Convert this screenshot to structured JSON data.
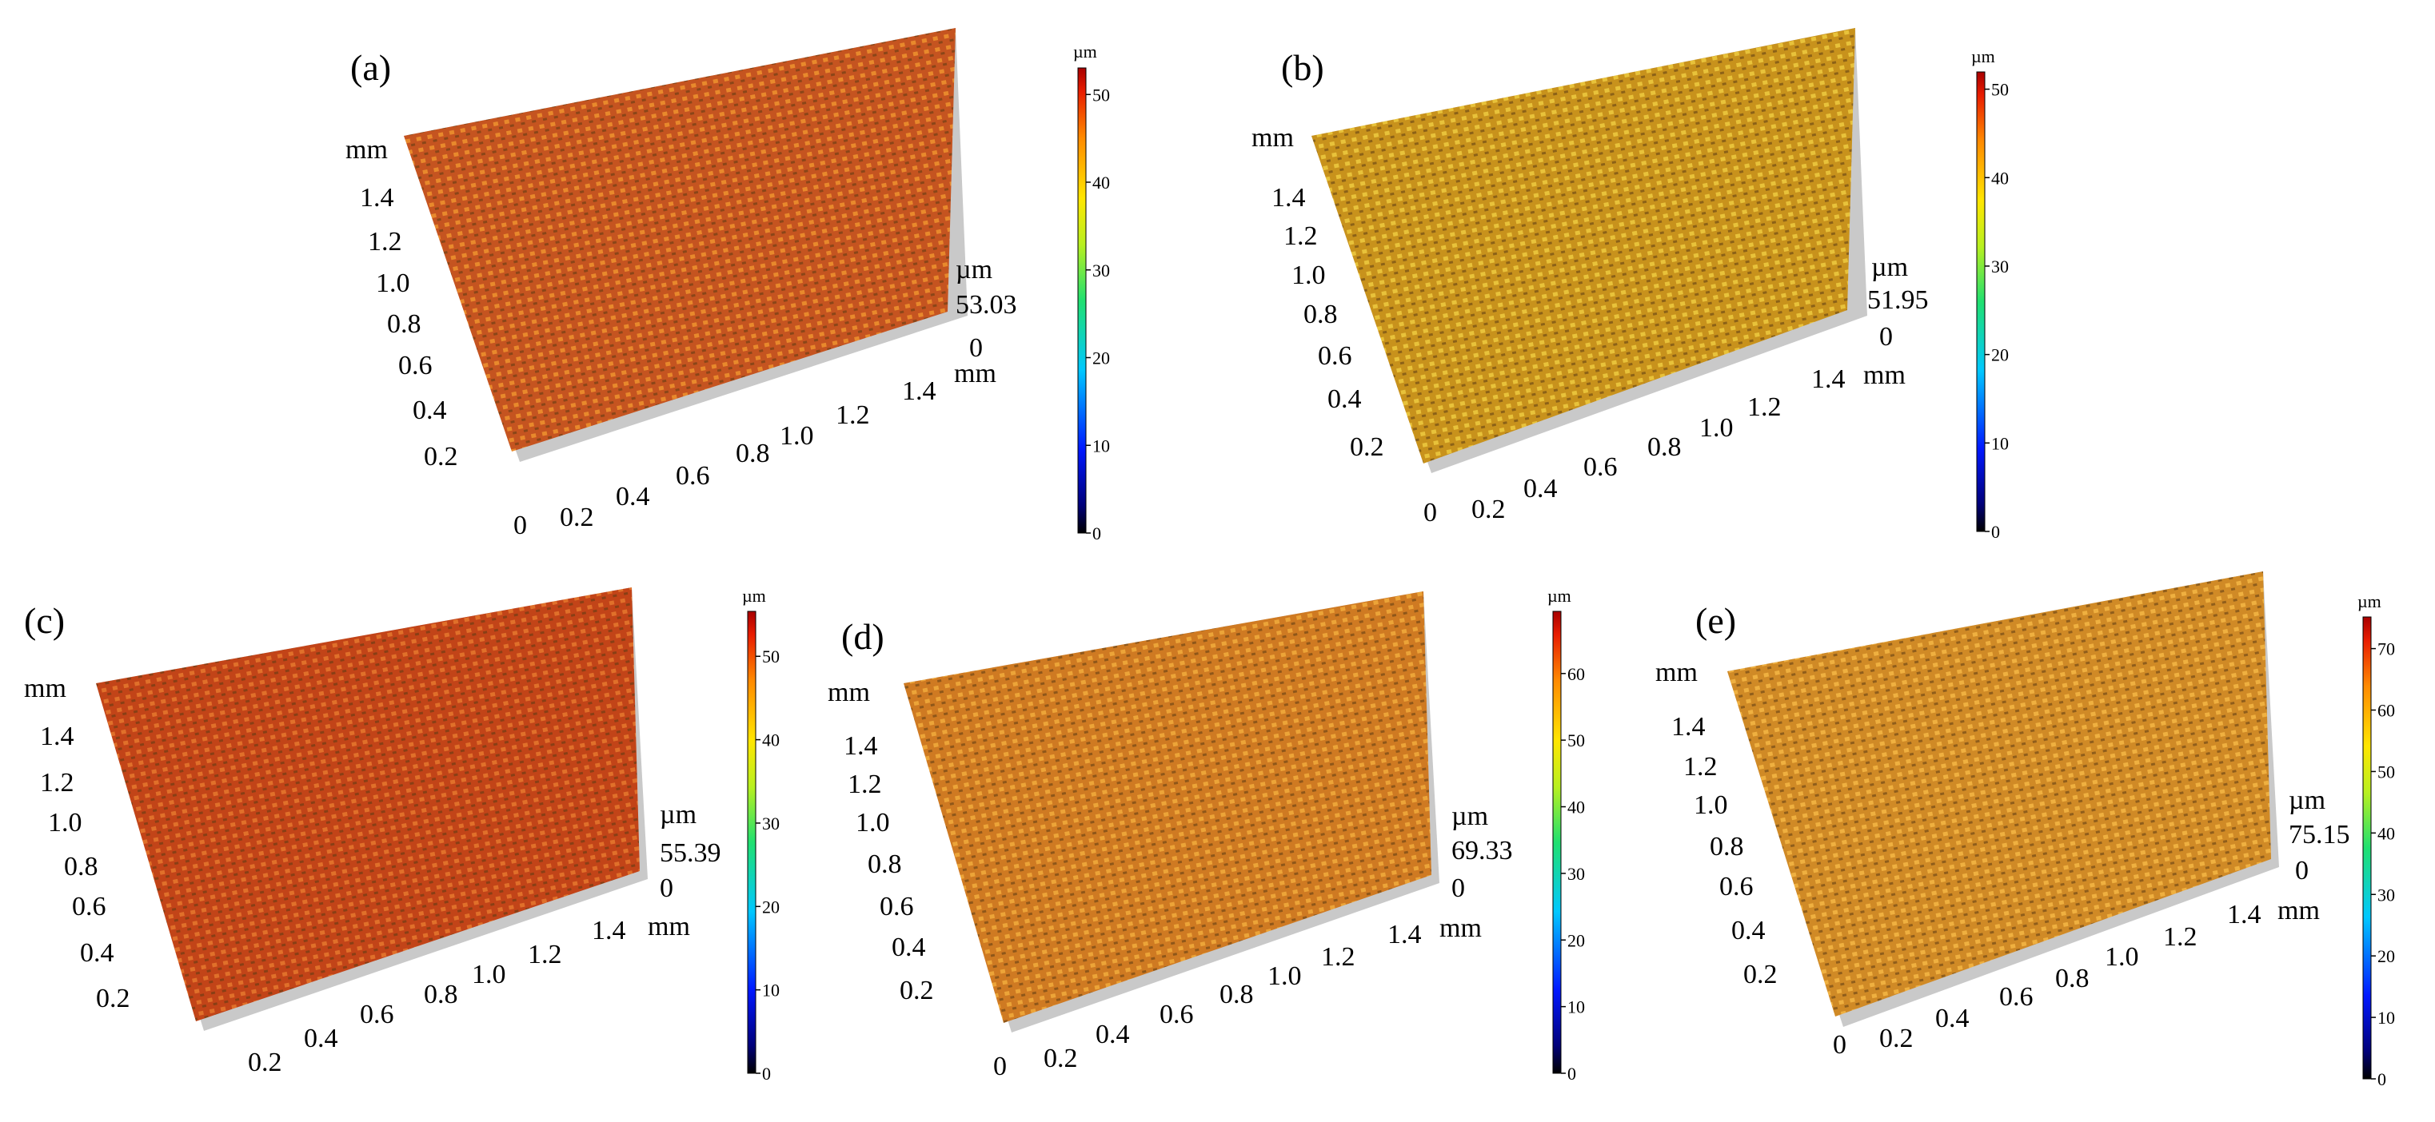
{
  "panels": [
    {
      "label": "(a)",
      "z_unit": "µm",
      "z_max": "53.03",
      "z_zero": "0",
      "surface_color": "#c55420",
      "highlight_color": "#e8892c",
      "y_axis": {
        "unit": "mm",
        "ticks": [
          "1.4",
          "1.2",
          "1.0",
          "0.8",
          "0.6",
          "0.4",
          "0.2"
        ]
      },
      "x_axis": {
        "unit": "mm",
        "ticks": [
          "0",
          "0.2",
          "0.4",
          "0.6",
          "0.8",
          "1.0",
          "1.2",
          "1.4"
        ]
      },
      "colorbar": {
        "unit": "µm",
        "ticks": [
          "50",
          "40",
          "30",
          "20",
          "10",
          "0"
        ]
      }
    },
    {
      "label": "(b)",
      "z_unit": "µm",
      "z_max": "51.95",
      "z_zero": "0",
      "surface_color": "#c8921c",
      "highlight_color": "#e8c23a",
      "y_axis": {
        "unit": "mm",
        "ticks": [
          "1.4",
          "1.2",
          "1.0",
          "0.8",
          "0.6",
          "0.4",
          "0.2"
        ]
      },
      "x_axis": {
        "unit": "mm",
        "ticks": [
          "0",
          "0.2",
          "0.4",
          "0.6",
          "0.8",
          "1.0",
          "1.2",
          "1.4"
        ]
      },
      "colorbar": {
        "unit": "µm",
        "ticks": [
          "50",
          "40",
          "30",
          "20",
          "10",
          "0"
        ]
      }
    },
    {
      "label": "(c)",
      "z_unit": "µm",
      "z_max": "55.39",
      "z_zero": "0",
      "surface_color": "#c24418",
      "highlight_color": "#e0702a",
      "y_axis": {
        "unit": "mm",
        "ticks": [
          "1.4",
          "1.2",
          "1.0",
          "0.8",
          "0.6",
          "0.4",
          "0.2"
        ]
      },
      "x_axis": {
        "unit": "mm",
        "ticks": [
          "0.2",
          "0.4",
          "0.6",
          "0.8",
          "1.0",
          "1.2",
          "1.4"
        ]
      },
      "colorbar": {
        "unit": "µm",
        "ticks": [
          "50",
          "40",
          "30",
          "20",
          "10",
          "0"
        ]
      }
    },
    {
      "label": "(d)",
      "z_unit": "µm",
      "z_max": "69.33",
      "z_zero": "0",
      "surface_color": "#cf7a22",
      "highlight_color": "#eca438",
      "y_axis": {
        "unit": "mm",
        "ticks": [
          "1.4",
          "1.2",
          "1.0",
          "0.8",
          "0.6",
          "0.4",
          "0.2"
        ]
      },
      "x_axis": {
        "unit": "mm",
        "ticks": [
          "0",
          "0.2",
          "0.4",
          "0.6",
          "0.8",
          "1.0",
          "1.2",
          "1.4"
        ]
      },
      "colorbar": {
        "unit": "µm",
        "ticks": [
          "60",
          "50",
          "40",
          "30",
          "20",
          "10",
          "0"
        ]
      }
    },
    {
      "label": "(e)",
      "z_unit": "µm",
      "z_max": "75.15",
      "z_zero": "0",
      "surface_color": "#d08a26",
      "highlight_color": "#efb040",
      "y_axis": {
        "unit": "mm",
        "ticks": [
          "1.4",
          "1.2",
          "1.0",
          "0.8",
          "0.6",
          "0.4",
          "0.2"
        ]
      },
      "x_axis": {
        "unit": "mm",
        "ticks": [
          "0",
          "0.2",
          "0.4",
          "0.6",
          "0.8",
          "1.0",
          "1.2",
          "1.4"
        ]
      },
      "colorbar": {
        "unit": "µm",
        "ticks": [
          "70",
          "60",
          "50",
          "40",
          "30",
          "20",
          "10",
          "0"
        ]
      }
    }
  ]
}
